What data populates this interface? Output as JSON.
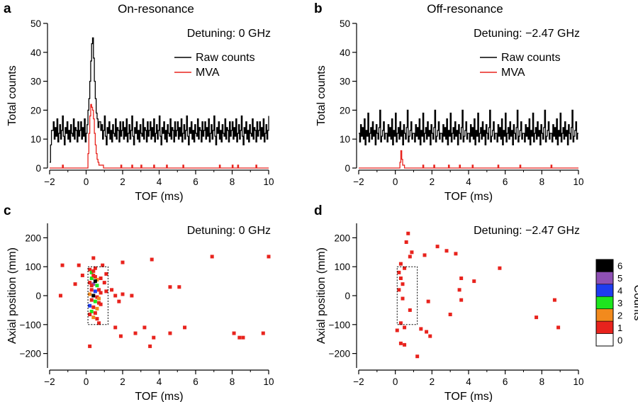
{
  "colors": {
    "raw": "#000000",
    "mva": "#e8231d",
    "counts_palette": [
      "#ffffff",
      "#e8231d",
      "#f28a1d",
      "#1ee61e",
      "#1e3cf0",
      "#8e50b4",
      "#000000"
    ]
  },
  "chart_data": [
    {
      "id": "a",
      "type": "line",
      "letter": "a",
      "title": "On-resonance",
      "annotation": "Detuning: 0 GHz",
      "xlabel": "TOF (ms)",
      "ylabel": "Total counts",
      "xlim": [
        -2,
        10
      ],
      "ylim": [
        0,
        50
      ],
      "xticks": [
        -2,
        0,
        2,
        4,
        6,
        8,
        10
      ],
      "yticks": [
        0,
        10,
        20,
        30,
        40,
        50
      ],
      "legend": [
        "Raw counts",
        "MVA"
      ],
      "raw_baseline_pattern": [
        13,
        16,
        10,
        14,
        11,
        17,
        9,
        12,
        15,
        10,
        13,
        18,
        11,
        8,
        14,
        12,
        16,
        10,
        13,
        9,
        15,
        12,
        11,
        17,
        10,
        14,
        13,
        9,
        16,
        11
      ],
      "raw_peak": {
        "x": [
          0.05,
          0.1,
          0.15,
          0.2,
          0.25,
          0.3,
          0.35,
          0.4,
          0.45,
          0.5,
          0.55,
          0.6,
          0.65,
          0.7,
          0.8
        ],
        "y": [
          15,
          20,
          24,
          30,
          37,
          43,
          45,
          38,
          30,
          24,
          19,
          17,
          14,
          16,
          13
        ]
      },
      "raw_start": {
        "x": [
          -2.0,
          -1.95,
          -1.9
        ],
        "y": [
          2,
          8,
          13
        ]
      },
      "mva_peak": {
        "x": [
          0.1,
          0.15,
          0.2,
          0.25,
          0.3,
          0.35,
          0.4,
          0.45,
          0.5,
          0.55,
          0.6,
          0.65,
          0.7,
          0.8,
          0.9
        ],
        "y": [
          5,
          12,
          18,
          22,
          21,
          20,
          17,
          12,
          8,
          5,
          3,
          2,
          1,
          1,
          0
        ]
      },
      "mva_spikes": [
        -1.3,
        0.9,
        1.9,
        2.5,
        3.0,
        3.7,
        4.4,
        5.3,
        7.3,
        8.0,
        8.3,
        9.3
      ]
    },
    {
      "id": "b",
      "type": "line",
      "letter": "b",
      "title": "Off-resonance",
      "annotation": "Detuning: −2.47 GHz",
      "xlabel": "TOF (ms)",
      "ylabel": "Total counts",
      "xlim": [
        -2,
        10
      ],
      "ylim": [
        0,
        50
      ],
      "xticks": [
        -2,
        0,
        2,
        4,
        6,
        8,
        10
      ],
      "yticks": [
        0,
        10,
        20,
        30,
        40,
        50
      ],
      "legend": [
        "Raw counts",
        "MVA"
      ],
      "raw_baseline_pattern": [
        12,
        9,
        15,
        11,
        14,
        10,
        17,
        8,
        13,
        11,
        19,
        9,
        12,
        14,
        10,
        16,
        11,
        13,
        8,
        15,
        12,
        10,
        14,
        20,
        9,
        11,
        13,
        16,
        10,
        12
      ],
      "mva_peak": {
        "x": [
          0.2,
          0.25,
          0.3,
          0.35,
          0.4,
          0.45,
          0.5
        ],
        "y": [
          0,
          2,
          6,
          3,
          1,
          1,
          0
        ]
      },
      "mva_spikes": [
        1.5,
        2.1,
        2.9,
        3.5,
        4.2,
        5.6,
        6.8,
        8.5
      ]
    },
    {
      "id": "c",
      "type": "scatter",
      "letter": "c",
      "annotation": "Detuning: 0 GHz",
      "xlabel": "TOF (ms)",
      "ylabel": "Axial position (mm)",
      "xlim": [
        -2,
        10
      ],
      "ylim": [
        -250,
        250
      ],
      "xticks": [
        -2,
        0,
        2,
        4,
        6,
        8,
        10
      ],
      "yticks": [
        -200,
        -100,
        0,
        100,
        200
      ],
      "roi": {
        "x0": 0.1,
        "x1": 1.2,
        "y0": -100,
        "y1": 100
      },
      "points": [
        [
          -1.3,
          105,
          1
        ],
        [
          -1.4,
          0,
          1
        ],
        [
          -0.4,
          105,
          1
        ],
        [
          -0.2,
          70,
          1
        ],
        [
          -0.6,
          40,
          1
        ],
        [
          0.4,
          130,
          1
        ],
        [
          0.9,
          105,
          1
        ],
        [
          1.1,
          75,
          1
        ],
        [
          1.0,
          45,
          1
        ],
        [
          1.1,
          15,
          1
        ],
        [
          1.4,
          20,
          1
        ],
        [
          1.6,
          0,
          1
        ],
        [
          2.0,
          115,
          1
        ],
        [
          1.8,
          -20,
          1
        ],
        [
          2.0,
          5,
          1
        ],
        [
          2.5,
          0,
          1
        ],
        [
          1.6,
          -110,
          1
        ],
        [
          1.9,
          -140,
          1
        ],
        [
          2.7,
          -130,
          1
        ],
        [
          3.2,
          -110,
          1
        ],
        [
          3.5,
          -175,
          1
        ],
        [
          3.7,
          -145,
          1
        ],
        [
          3.6,
          125,
          1
        ],
        [
          4.6,
          30,
          1
        ],
        [
          5.1,
          30,
          1
        ],
        [
          4.6,
          -130,
          1
        ],
        [
          5.4,
          -110,
          1
        ],
        [
          6.9,
          135,
          1
        ],
        [
          8.1,
          -130,
          1
        ],
        [
          8.4,
          -145,
          1
        ],
        [
          8.6,
          -145,
          1
        ],
        [
          9.7,
          -130,
          1
        ],
        [
          10.0,
          135,
          1
        ],
        [
          0.2,
          -175,
          1
        ],
        [
          0.7,
          -95,
          1
        ],
        [
          0.2,
          90,
          1
        ],
        [
          0.3,
          80,
          3
        ],
        [
          0.4,
          85,
          1
        ],
        [
          0.5,
          95,
          1
        ],
        [
          0.3,
          60,
          3
        ],
        [
          0.5,
          65,
          1
        ],
        [
          0.6,
          55,
          2
        ],
        [
          0.2,
          45,
          1
        ],
        [
          0.4,
          40,
          5
        ],
        [
          0.6,
          35,
          3
        ],
        [
          0.3,
          20,
          1
        ],
        [
          0.5,
          15,
          4
        ],
        [
          0.7,
          20,
          1
        ],
        [
          0.2,
          5,
          2
        ],
        [
          0.4,
          0,
          6
        ],
        [
          0.6,
          -5,
          1
        ],
        [
          0.3,
          -15,
          1
        ],
        [
          0.5,
          -20,
          3
        ],
        [
          0.7,
          -25,
          1
        ],
        [
          0.2,
          -35,
          4
        ],
        [
          0.4,
          -40,
          1
        ],
        [
          0.6,
          -45,
          2
        ],
        [
          0.3,
          -55,
          3
        ],
        [
          0.5,
          -60,
          1
        ],
        [
          0.4,
          -75,
          2
        ],
        [
          0.6,
          -80,
          1
        ],
        [
          0.8,
          -30,
          1
        ],
        [
          0.8,
          10,
          1
        ],
        [
          0.8,
          60,
          1
        ],
        [
          0.3,
          35,
          1
        ],
        [
          0.5,
          50,
          6
        ],
        [
          0.7,
          -10,
          2
        ],
        [
          0.2,
          -65,
          1
        ],
        [
          0.4,
          70,
          1
        ]
      ]
    },
    {
      "id": "d",
      "type": "scatter",
      "letter": "d",
      "annotation": "Detuning: −2.47 GHz",
      "xlabel": "TOF (ms)",
      "ylabel": "Axial position (mm)",
      "xlim": [
        -2,
        10
      ],
      "ylim": [
        -250,
        250
      ],
      "xticks": [
        -2,
        0,
        2,
        4,
        6,
        8,
        10
      ],
      "yticks": [
        -200,
        -100,
        0,
        100,
        200
      ],
      "roi": {
        "x0": 0.1,
        "x1": 1.2,
        "y0": -100,
        "y1": 100
      },
      "points": [
        [
          0.7,
          215,
          1
        ],
        [
          0.6,
          185,
          1
        ],
        [
          0.9,
          150,
          1
        ],
        [
          0.8,
          135,
          1
        ],
        [
          0.3,
          110,
          1
        ],
        [
          0.5,
          95,
          1
        ],
        [
          0.2,
          80,
          1
        ],
        [
          0.3,
          60,
          1
        ],
        [
          0.4,
          40,
          1
        ],
        [
          0.2,
          20,
          1
        ],
        [
          0.4,
          -10,
          1
        ],
        [
          0.8,
          -50,
          1
        ],
        [
          0.3,
          -95,
          1
        ],
        [
          0.1,
          -120,
          1
        ],
        [
          0.5,
          -110,
          1
        ],
        [
          1.4,
          -115,
          1
        ],
        [
          1.7,
          -125,
          1
        ],
        [
          1.9,
          -140,
          1
        ],
        [
          0.5,
          -170,
          1
        ],
        [
          1.2,
          -210,
          1
        ],
        [
          0.3,
          -165,
          1
        ],
        [
          1.6,
          140,
          1
        ],
        [
          1.8,
          -20,
          1
        ],
        [
          2.3,
          170,
          1
        ],
        [
          2.8,
          155,
          1
        ],
        [
          3.3,
          145,
          1
        ],
        [
          3.6,
          60,
          1
        ],
        [
          4.3,
          50,
          1
        ],
        [
          3.5,
          20,
          1
        ],
        [
          3.6,
          -15,
          1
        ],
        [
          3.0,
          -65,
          1
        ],
        [
          5.7,
          95,
          1
        ],
        [
          7.7,
          -75,
          1
        ],
        [
          8.7,
          -15,
          1
        ],
        [
          8.9,
          -110,
          1
        ]
      ]
    }
  ],
  "colorbar": {
    "title": "Counts",
    "levels": [
      "6",
      "5",
      "4",
      "3",
      "2",
      "1",
      "0"
    ]
  }
}
